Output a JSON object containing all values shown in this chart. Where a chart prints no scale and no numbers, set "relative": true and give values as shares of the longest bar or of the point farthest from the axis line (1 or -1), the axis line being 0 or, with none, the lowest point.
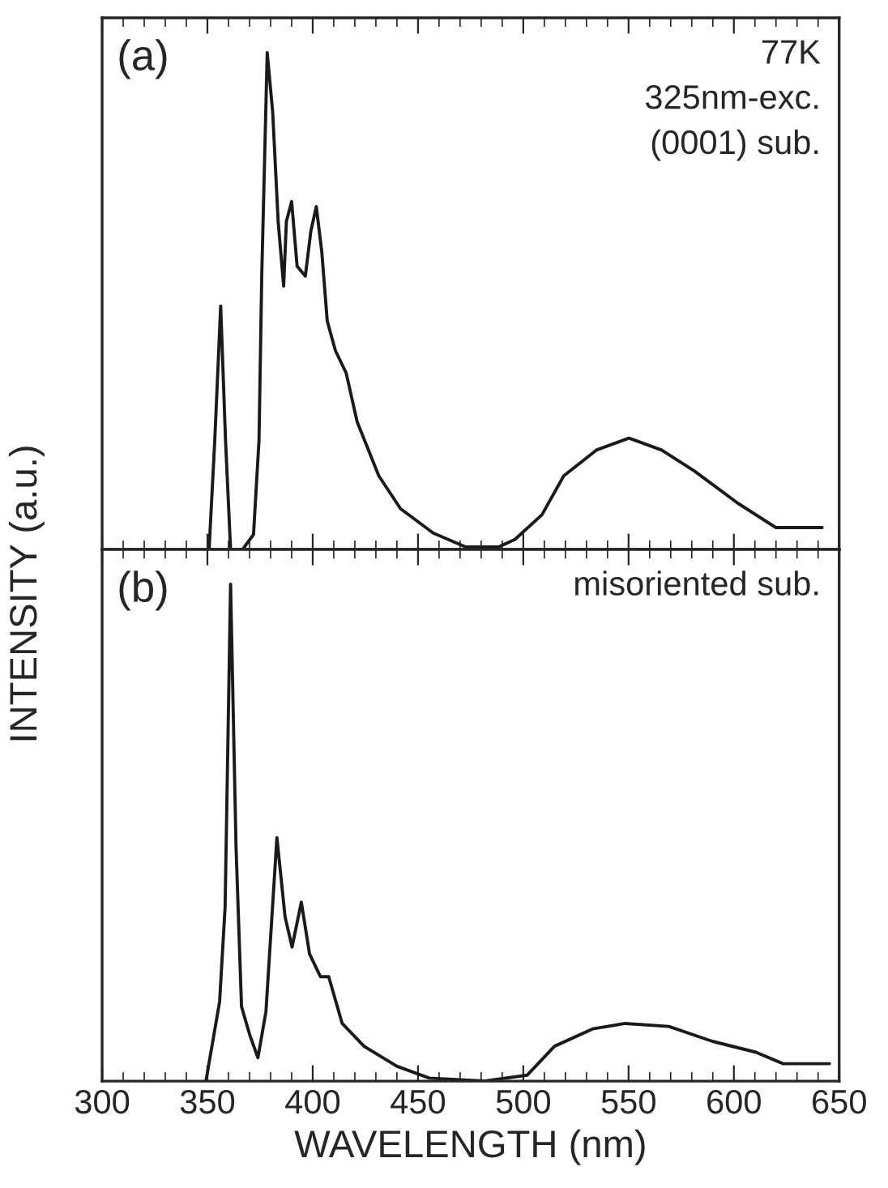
{
  "chart_data": [
    {
      "type": "line",
      "relative": true,
      "ylabel": "INTENSITY (a.u.)",
      "tick_labels": false,
      "xlim": [
        300,
        650
      ],
      "xticks": [
        300,
        350,
        400,
        450,
        500,
        550,
        600,
        650
      ],
      "annotations": [
        "(a)",
        "77K",
        "325nm-exc.",
        "(0001) sub."
      ],
      "series": [
        {
          "color": "#1a1a1a",
          "x": [
            350.8,
            353.5,
            356.3,
            358.6,
            361,
            366.7,
            371.9,
            374.5,
            375.8,
            378.4,
            381,
            383.6,
            386.2,
            387.5,
            390,
            392.6,
            396.5,
            399.1,
            401.7,
            404.3,
            406.9,
            410.8,
            415.9,
            421.1,
            431.4,
            441.7,
            457.2,
            472.7,
            488.2,
            496,
            508.9,
            519.2,
            534.7,
            550.2,
            565.7,
            581.2,
            601.9,
            620,
            630.3,
            641.9
          ],
          "values": [
            0,
            0.22,
            0.49,
            0.22,
            0,
            0,
            0.03,
            0.22,
            0.55,
            1.0,
            0.88,
            0.66,
            0.53,
            0.66,
            0.7,
            0.57,
            0.55,
            0.64,
            0.69,
            0.6,
            0.46,
            0.4,
            0.355,
            0.257,
            0.148,
            0.082,
            0.033,
            0.005,
            0.005,
            0.02,
            0.07,
            0.148,
            0.2,
            0.224,
            0.2,
            0.158,
            0.093,
            0.044,
            0.044,
            0.044
          ]
        }
      ]
    },
    {
      "type": "line",
      "relative": true,
      "xlabel": "WAVELENGTH (nm)",
      "tick_labels": "x",
      "xlim": [
        300,
        650
      ],
      "xticks": [
        300,
        350,
        400,
        450,
        500,
        550,
        600,
        650
      ],
      "annotations": [
        "(b)",
        "misoriented sub."
      ],
      "series": [
        {
          "color": "#1a1a1a",
          "x": [
            349.3,
            355.8,
            358.4,
            361,
            363.6,
            366.2,
            370.1,
            374,
            377.8,
            383,
            386.9,
            390.2,
            394.6,
            398.5,
            403.7,
            407.6,
            414,
            424.4,
            439.9,
            455.4,
            481.2,
            501.9,
            514.8,
            532.9,
            548.4,
            569.1,
            589.8,
            610.5,
            623.4,
            645.4
          ],
          "values": [
            0,
            0.16,
            0.35,
            1.0,
            0.47,
            0.15,
            0.093,
            0.047,
            0.14,
            0.49,
            0.33,
            0.27,
            0.36,
            0.256,
            0.21,
            0.21,
            0.116,
            0.07,
            0.03,
            0.006,
            0,
            0.012,
            0.07,
            0.105,
            0.116,
            0.11,
            0.08,
            0.058,
            0.035,
            0.035
          ]
        }
      ]
    }
  ]
}
